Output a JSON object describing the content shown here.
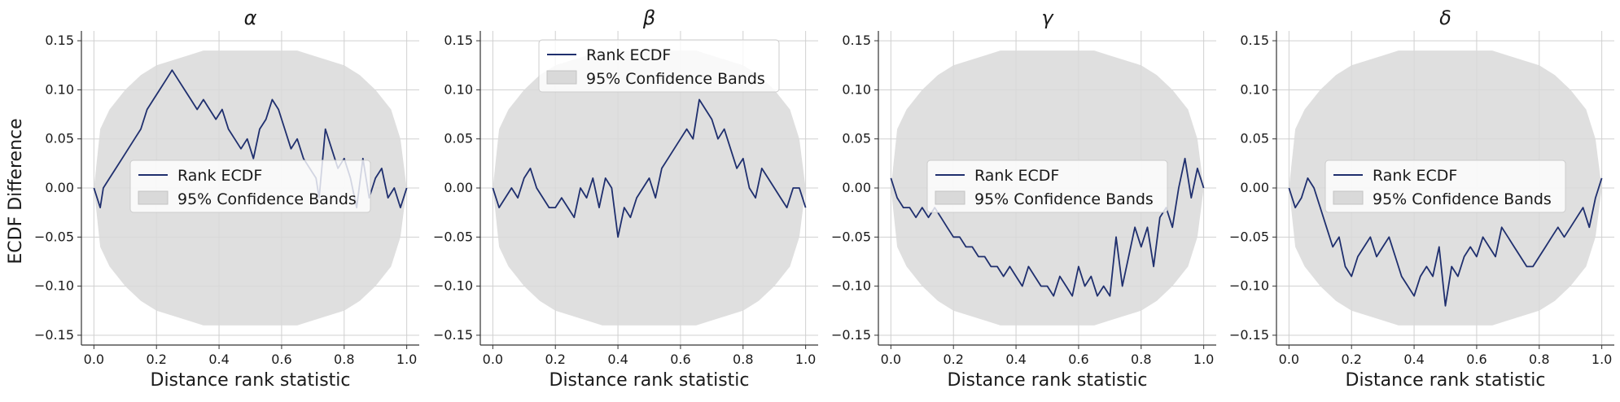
{
  "figure": {
    "ylabel": "ECDF Difference",
    "xlabel": "Distance rank statistic"
  },
  "legend": {
    "line_label": "Rank ECDF",
    "band_label": "95% Confidence Bands"
  },
  "colors": {
    "line": "#1f2f6e",
    "band": "#d9d9d9",
    "grid": "#d0d0d0",
    "axis": "#333333"
  },
  "chart_data": [
    {
      "type": "line",
      "title": "α",
      "xlabel": "Distance rank statistic",
      "ylabel": "ECDF Difference",
      "xlim": [
        -0.04,
        1.04
      ],
      "ylim": [
        -0.16,
        0.16
      ],
      "xticks": [
        "0.0",
        "0.2",
        "0.4",
        "0.6",
        "0.8",
        "1.0"
      ],
      "yticks": [
        "−0.15",
        "−0.10",
        "−0.05",
        "0.00",
        "0.05",
        "0.10",
        "0.15"
      ],
      "grid": true,
      "legend_position": "center",
      "series": [
        {
          "name": "Rank ECDF",
          "x": [
            0.0,
            0.02,
            0.03,
            0.05,
            0.07,
            0.09,
            0.11,
            0.13,
            0.15,
            0.17,
            0.19,
            0.21,
            0.23,
            0.25,
            0.27,
            0.29,
            0.31,
            0.33,
            0.35,
            0.37,
            0.39,
            0.41,
            0.43,
            0.45,
            0.47,
            0.49,
            0.51,
            0.53,
            0.55,
            0.57,
            0.59,
            0.61,
            0.63,
            0.65,
            0.67,
            0.69,
            0.71,
            0.72,
            0.74,
            0.76,
            0.78,
            0.8,
            0.82,
            0.84,
            0.86,
            0.88,
            0.9,
            0.92,
            0.94,
            0.96,
            0.98,
            1.0
          ],
          "y": [
            0.0,
            -0.02,
            0.0,
            0.01,
            0.02,
            0.03,
            0.04,
            0.05,
            0.06,
            0.08,
            0.09,
            0.1,
            0.11,
            0.12,
            0.11,
            0.1,
            0.09,
            0.08,
            0.09,
            0.08,
            0.07,
            0.08,
            0.06,
            0.05,
            0.04,
            0.05,
            0.03,
            0.06,
            0.07,
            0.09,
            0.08,
            0.06,
            0.04,
            0.05,
            0.03,
            0.02,
            0.01,
            -0.01,
            0.06,
            0.04,
            0.02,
            0.03,
            0.01,
            -0.02,
            0.03,
            -0.01,
            0.01,
            0.02,
            -0.01,
            0.0,
            -0.02,
            0.0
          ]
        }
      ],
      "band": {
        "name": "95% Confidence Bands",
        "x": [
          0.0,
          0.02,
          0.05,
          0.1,
          0.15,
          0.2,
          0.25,
          0.3,
          0.35,
          0.4,
          0.45,
          0.5,
          0.55,
          0.6,
          0.65,
          0.7,
          0.75,
          0.8,
          0.85,
          0.9,
          0.95,
          0.98,
          1.0
        ],
        "upper": [
          0.0,
          0.06,
          0.08,
          0.1,
          0.115,
          0.125,
          0.13,
          0.135,
          0.14,
          0.14,
          0.14,
          0.14,
          0.14,
          0.14,
          0.14,
          0.135,
          0.13,
          0.125,
          0.115,
          0.1,
          0.08,
          0.05,
          0.0
        ],
        "lower": [
          0.0,
          -0.06,
          -0.08,
          -0.1,
          -0.115,
          -0.125,
          -0.13,
          -0.135,
          -0.14,
          -0.14,
          -0.14,
          -0.14,
          -0.14,
          -0.14,
          -0.14,
          -0.135,
          -0.13,
          -0.125,
          -0.115,
          -0.1,
          -0.08,
          -0.05,
          0.0
        ]
      }
    },
    {
      "type": "line",
      "title": "β",
      "xlabel": "Distance rank statistic",
      "ylabel": "",
      "xlim": [
        -0.04,
        1.04
      ],
      "ylim": [
        -0.16,
        0.16
      ],
      "xticks": [
        "0.0",
        "0.2",
        "0.4",
        "0.6",
        "0.8",
        "1.0"
      ],
      "yticks": [
        "−0.15",
        "−0.10",
        "−0.05",
        "0.00",
        "0.05",
        "0.10",
        "0.15"
      ],
      "grid": true,
      "legend_position": "upper center",
      "series": [
        {
          "name": "Rank ECDF",
          "x": [
            0.0,
            0.02,
            0.04,
            0.06,
            0.08,
            0.1,
            0.12,
            0.14,
            0.16,
            0.18,
            0.2,
            0.22,
            0.24,
            0.26,
            0.28,
            0.3,
            0.32,
            0.34,
            0.36,
            0.38,
            0.4,
            0.42,
            0.44,
            0.46,
            0.48,
            0.5,
            0.52,
            0.54,
            0.56,
            0.58,
            0.6,
            0.62,
            0.64,
            0.66,
            0.68,
            0.7,
            0.72,
            0.74,
            0.76,
            0.78,
            0.8,
            0.82,
            0.84,
            0.86,
            0.88,
            0.9,
            0.92,
            0.94,
            0.96,
            0.98,
            1.0
          ],
          "y": [
            0.0,
            -0.02,
            -0.01,
            0.0,
            -0.01,
            0.01,
            0.02,
            0.0,
            -0.01,
            -0.02,
            -0.02,
            -0.01,
            -0.02,
            -0.03,
            0.0,
            -0.01,
            0.01,
            -0.02,
            0.01,
            0.0,
            -0.05,
            -0.02,
            -0.03,
            -0.01,
            0.0,
            0.01,
            -0.01,
            0.02,
            0.03,
            0.04,
            0.05,
            0.06,
            0.05,
            0.09,
            0.08,
            0.07,
            0.05,
            0.06,
            0.04,
            0.02,
            0.03,
            0.0,
            -0.01,
            0.02,
            0.01,
            0.0,
            -0.01,
            -0.02,
            0.0,
            0.0,
            -0.02
          ]
        }
      ],
      "band": {
        "name": "95% Confidence Bands",
        "x": [
          0.0,
          0.02,
          0.05,
          0.1,
          0.15,
          0.2,
          0.25,
          0.3,
          0.35,
          0.4,
          0.45,
          0.5,
          0.55,
          0.6,
          0.65,
          0.7,
          0.75,
          0.8,
          0.85,
          0.9,
          0.95,
          0.98,
          1.0
        ],
        "upper": [
          0.0,
          0.06,
          0.08,
          0.1,
          0.115,
          0.125,
          0.13,
          0.135,
          0.14,
          0.14,
          0.14,
          0.14,
          0.14,
          0.14,
          0.14,
          0.135,
          0.13,
          0.125,
          0.115,
          0.1,
          0.08,
          0.05,
          0.0
        ],
        "lower": [
          0.0,
          -0.06,
          -0.08,
          -0.1,
          -0.115,
          -0.125,
          -0.13,
          -0.135,
          -0.14,
          -0.14,
          -0.14,
          -0.14,
          -0.14,
          -0.14,
          -0.14,
          -0.135,
          -0.13,
          -0.125,
          -0.115,
          -0.1,
          -0.08,
          -0.05,
          0.0
        ]
      }
    },
    {
      "type": "line",
      "title": "γ",
      "xlabel": "Distance rank statistic",
      "ylabel": "",
      "xlim": [
        -0.04,
        1.04
      ],
      "ylim": [
        -0.16,
        0.16
      ],
      "xticks": [
        "0.0",
        "0.2",
        "0.4",
        "0.6",
        "0.8",
        "1.0"
      ],
      "yticks": [
        "−0.15",
        "−0.10",
        "−0.05",
        "0.00",
        "0.05",
        "0.10",
        "0.15"
      ],
      "grid": true,
      "legend_position": "center",
      "series": [
        {
          "name": "Rank ECDF",
          "x": [
            0.0,
            0.02,
            0.04,
            0.06,
            0.08,
            0.1,
            0.12,
            0.14,
            0.16,
            0.18,
            0.2,
            0.22,
            0.24,
            0.26,
            0.28,
            0.3,
            0.32,
            0.34,
            0.36,
            0.38,
            0.4,
            0.42,
            0.44,
            0.46,
            0.48,
            0.5,
            0.52,
            0.54,
            0.56,
            0.58,
            0.6,
            0.62,
            0.64,
            0.66,
            0.68,
            0.7,
            0.72,
            0.74,
            0.76,
            0.78,
            0.8,
            0.82,
            0.84,
            0.86,
            0.88,
            0.9,
            0.92,
            0.94,
            0.96,
            0.98,
            1.0
          ],
          "y": [
            0.01,
            -0.01,
            -0.02,
            -0.02,
            -0.03,
            -0.02,
            -0.03,
            -0.02,
            -0.03,
            -0.04,
            -0.05,
            -0.05,
            -0.06,
            -0.06,
            -0.07,
            -0.07,
            -0.08,
            -0.08,
            -0.09,
            -0.08,
            -0.09,
            -0.1,
            -0.08,
            -0.09,
            -0.1,
            -0.1,
            -0.11,
            -0.09,
            -0.1,
            -0.11,
            -0.08,
            -0.1,
            -0.09,
            -0.11,
            -0.1,
            -0.11,
            -0.05,
            -0.1,
            -0.07,
            -0.04,
            -0.06,
            -0.04,
            -0.08,
            -0.03,
            -0.02,
            -0.04,
            0.0,
            0.03,
            -0.01,
            0.02,
            0.0
          ]
        }
      ],
      "band": {
        "name": "95% Confidence Bands",
        "x": [
          0.0,
          0.02,
          0.05,
          0.1,
          0.15,
          0.2,
          0.25,
          0.3,
          0.35,
          0.4,
          0.45,
          0.5,
          0.55,
          0.6,
          0.65,
          0.7,
          0.75,
          0.8,
          0.85,
          0.9,
          0.95,
          0.98,
          1.0
        ],
        "upper": [
          0.0,
          0.06,
          0.08,
          0.1,
          0.115,
          0.125,
          0.13,
          0.135,
          0.14,
          0.14,
          0.14,
          0.14,
          0.14,
          0.14,
          0.14,
          0.135,
          0.13,
          0.125,
          0.115,
          0.1,
          0.08,
          0.05,
          0.0
        ],
        "lower": [
          0.0,
          -0.06,
          -0.08,
          -0.1,
          -0.115,
          -0.125,
          -0.13,
          -0.135,
          -0.14,
          -0.14,
          -0.14,
          -0.14,
          -0.14,
          -0.14,
          -0.14,
          -0.135,
          -0.13,
          -0.125,
          -0.115,
          -0.1,
          -0.08,
          -0.05,
          0.0
        ]
      }
    },
    {
      "type": "line",
      "title": "δ",
      "xlabel": "Distance rank statistic",
      "ylabel": "",
      "xlim": [
        -0.04,
        1.04
      ],
      "ylim": [
        -0.16,
        0.16
      ],
      "xticks": [
        "0.0",
        "0.2",
        "0.4",
        "0.6",
        "0.8",
        "1.0"
      ],
      "yticks": [
        "−0.15",
        "−0.10",
        "−0.05",
        "0.00",
        "0.05",
        "0.10",
        "0.15"
      ],
      "grid": true,
      "legend_position": "center",
      "series": [
        {
          "name": "Rank ECDF",
          "x": [
            0.0,
            0.02,
            0.04,
            0.06,
            0.08,
            0.1,
            0.12,
            0.14,
            0.16,
            0.18,
            0.2,
            0.22,
            0.24,
            0.26,
            0.28,
            0.3,
            0.32,
            0.34,
            0.36,
            0.38,
            0.4,
            0.42,
            0.44,
            0.46,
            0.48,
            0.5,
            0.52,
            0.54,
            0.56,
            0.58,
            0.6,
            0.62,
            0.64,
            0.66,
            0.68,
            0.7,
            0.72,
            0.74,
            0.76,
            0.78,
            0.8,
            0.82,
            0.84,
            0.86,
            0.88,
            0.9,
            0.92,
            0.94,
            0.96,
            0.98,
            1.0
          ],
          "y": [
            0.0,
            -0.02,
            -0.01,
            0.01,
            0.0,
            -0.02,
            -0.04,
            -0.06,
            -0.05,
            -0.08,
            -0.09,
            -0.07,
            -0.06,
            -0.05,
            -0.07,
            -0.06,
            -0.05,
            -0.07,
            -0.09,
            -0.1,
            -0.11,
            -0.09,
            -0.08,
            -0.09,
            -0.06,
            -0.12,
            -0.08,
            -0.09,
            -0.07,
            -0.06,
            -0.07,
            -0.05,
            -0.06,
            -0.07,
            -0.04,
            -0.05,
            -0.06,
            -0.07,
            -0.08,
            -0.08,
            -0.07,
            -0.06,
            -0.05,
            -0.04,
            -0.05,
            -0.04,
            -0.03,
            -0.02,
            -0.04,
            -0.01,
            0.01
          ]
        }
      ],
      "band": {
        "name": "95% Confidence Bands",
        "x": [
          0.0,
          0.02,
          0.05,
          0.1,
          0.15,
          0.2,
          0.25,
          0.3,
          0.35,
          0.4,
          0.45,
          0.5,
          0.55,
          0.6,
          0.65,
          0.7,
          0.75,
          0.8,
          0.85,
          0.9,
          0.95,
          0.98,
          1.0
        ],
        "upper": [
          0.0,
          0.06,
          0.08,
          0.1,
          0.115,
          0.125,
          0.13,
          0.135,
          0.14,
          0.14,
          0.14,
          0.14,
          0.14,
          0.14,
          0.14,
          0.135,
          0.13,
          0.125,
          0.115,
          0.1,
          0.08,
          0.05,
          0.0
        ],
        "lower": [
          0.0,
          -0.06,
          -0.08,
          -0.1,
          -0.115,
          -0.125,
          -0.13,
          -0.135,
          -0.14,
          -0.14,
          -0.14,
          -0.14,
          -0.14,
          -0.14,
          -0.14,
          -0.135,
          -0.13,
          -0.125,
          -0.115,
          -0.1,
          -0.08,
          -0.05,
          0.0
        ]
      }
    }
  ]
}
